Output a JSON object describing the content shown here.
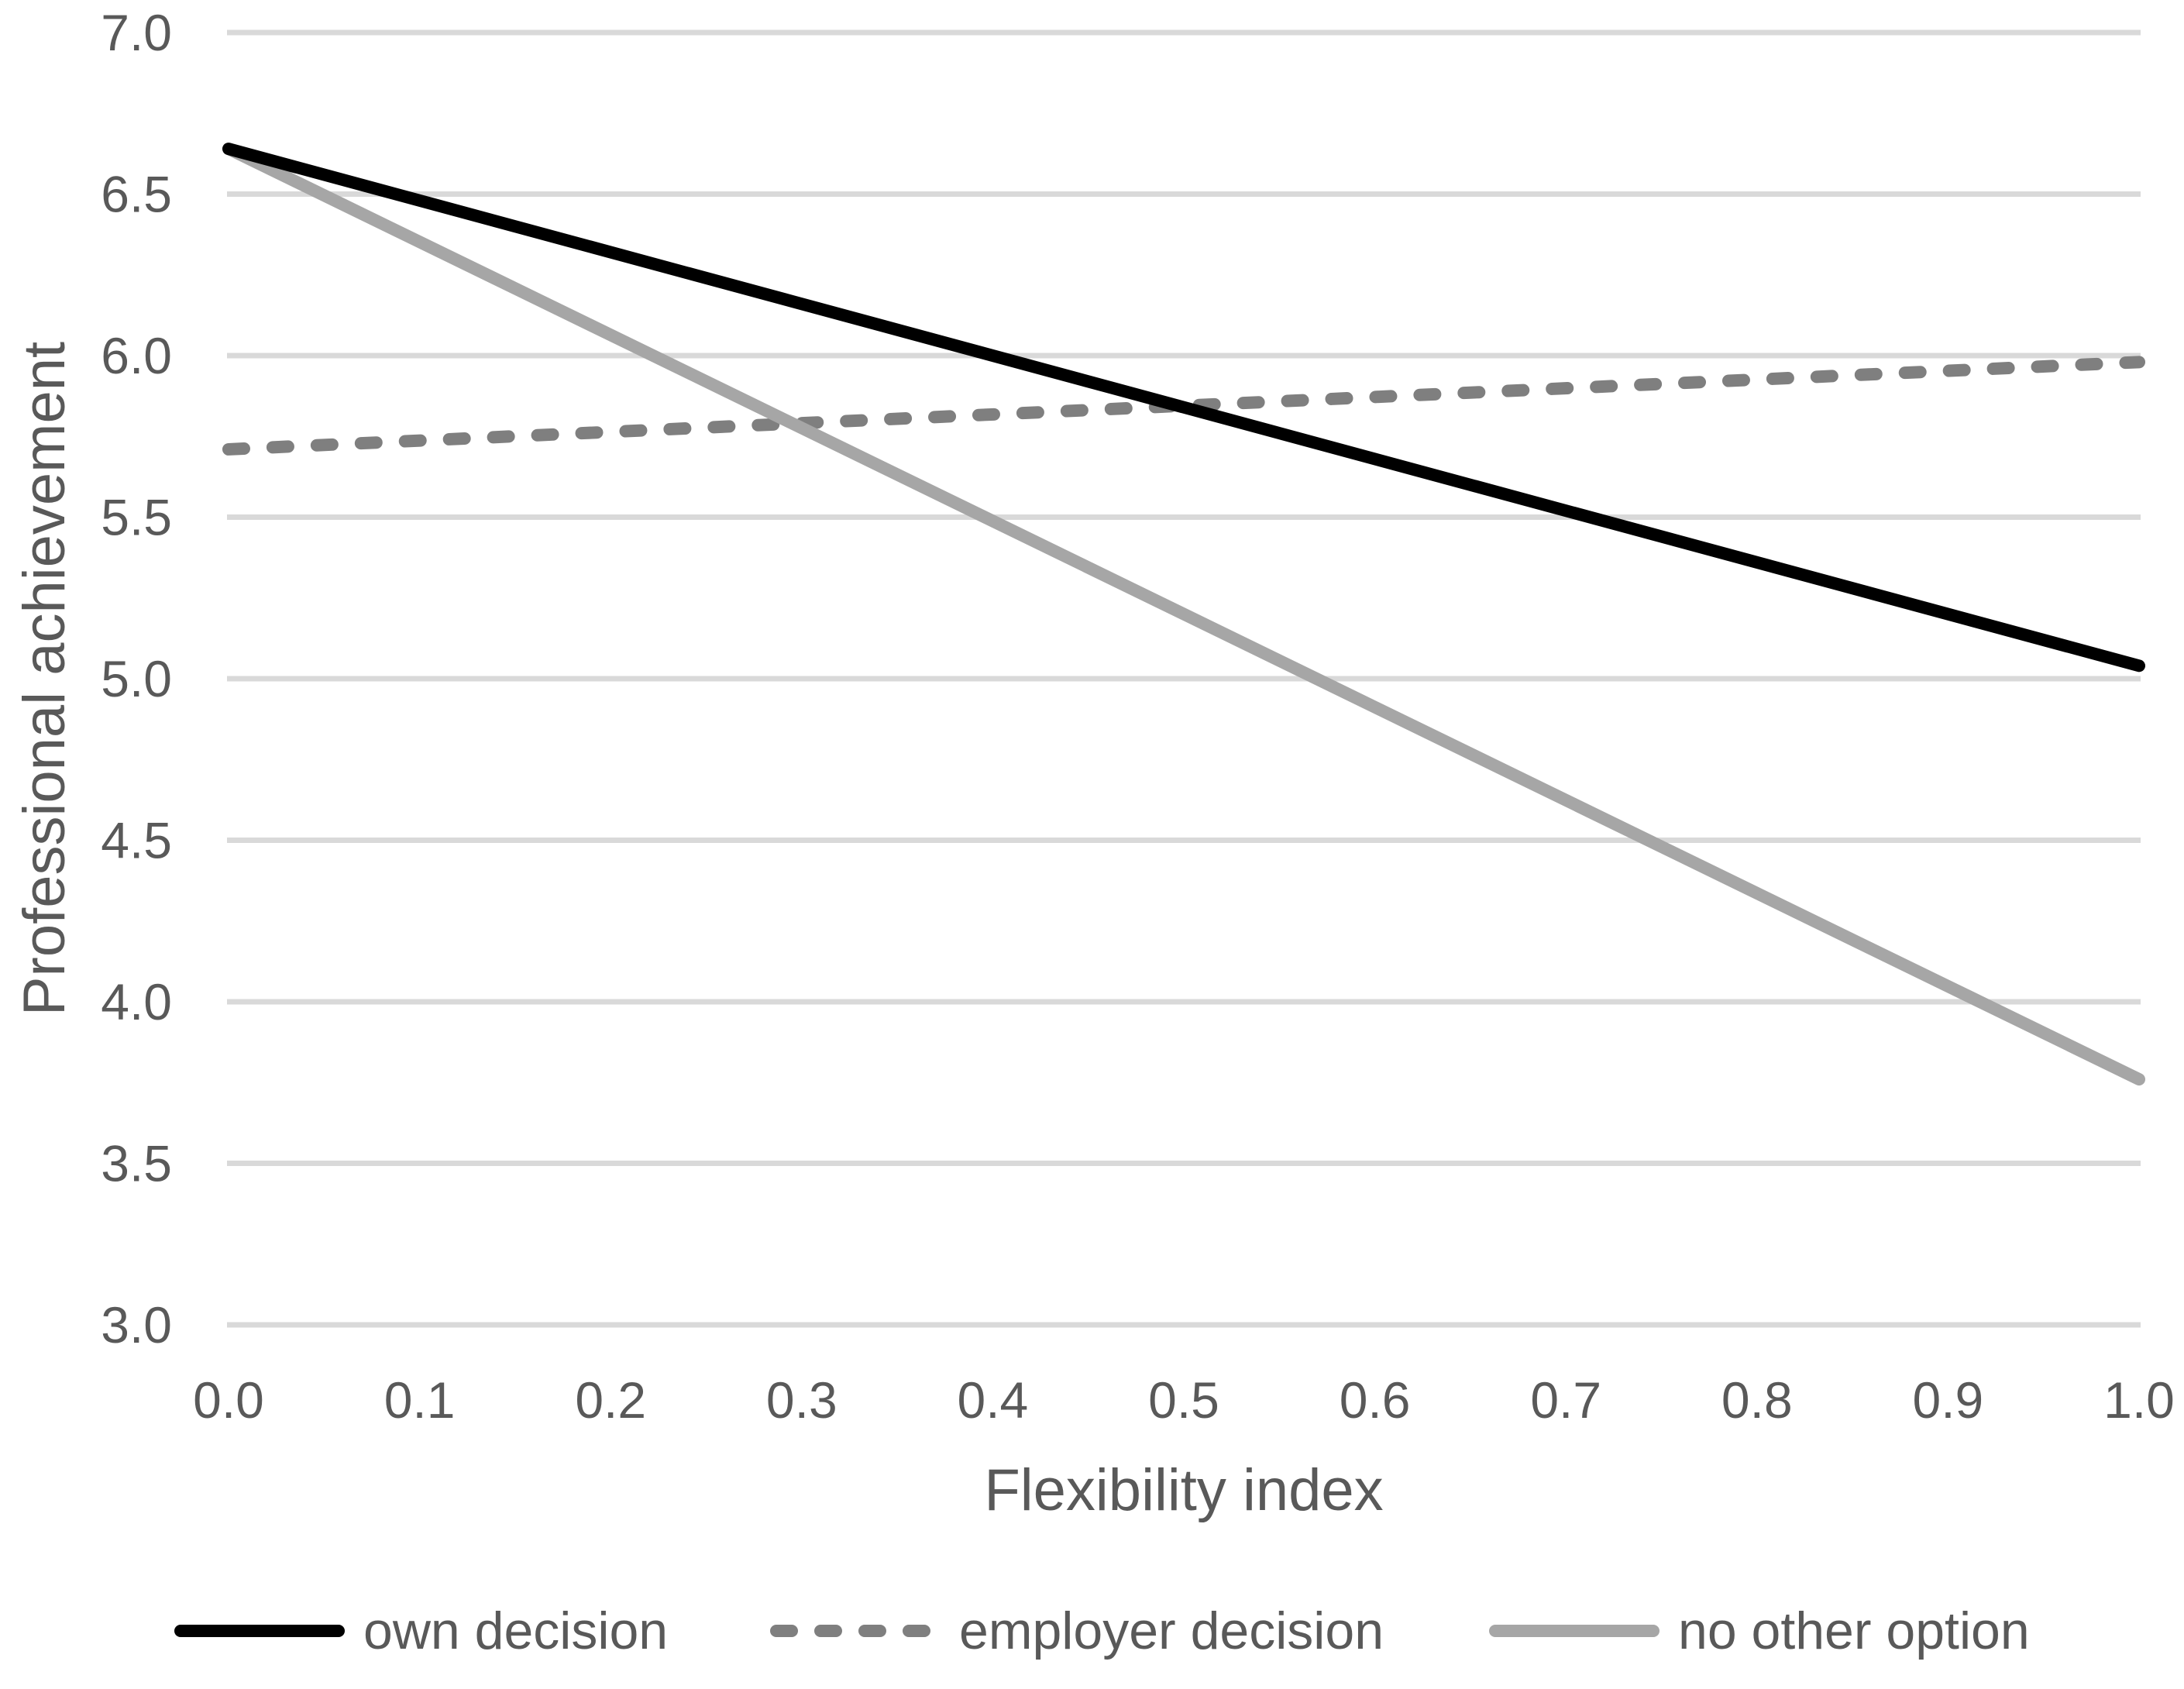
{
  "figure": {
    "background": "#ffffff",
    "text_color": "#595959",
    "grid_color": "#d9d9d9"
  },
  "chart_data": {
    "type": "line",
    "title": "",
    "xlabel": "Flexibility index",
    "ylabel": "Professional achievement",
    "xlim": [
      0.0,
      1.0
    ],
    "ylim": [
      3.0,
      7.0
    ],
    "x_ticks": [
      "0.0",
      "0.1",
      "0.2",
      "0.3",
      "0.4",
      "0.5",
      "0.6",
      "0.7",
      "0.8",
      "0.9",
      "1.0"
    ],
    "y_ticks": [
      "3.0",
      "3.5",
      "4.0",
      "4.5",
      "5.0",
      "5.5",
      "6.0",
      "6.5",
      "7.0"
    ],
    "grid": "horizontal",
    "legend_position": "bottom",
    "x": [
      0.0,
      1.0
    ],
    "series": [
      {
        "name": "own decision",
        "values": [
          6.64,
          5.04
        ],
        "color": "#000000",
        "style": "solid"
      },
      {
        "name": "employer decision",
        "values": [
          5.71,
          5.98
        ],
        "color": "#7f7f7f",
        "style": "dashed"
      },
      {
        "name": "no other option",
        "values": [
          6.64,
          3.76
        ],
        "color": "#a6a6a6",
        "style": "solid"
      }
    ]
  }
}
